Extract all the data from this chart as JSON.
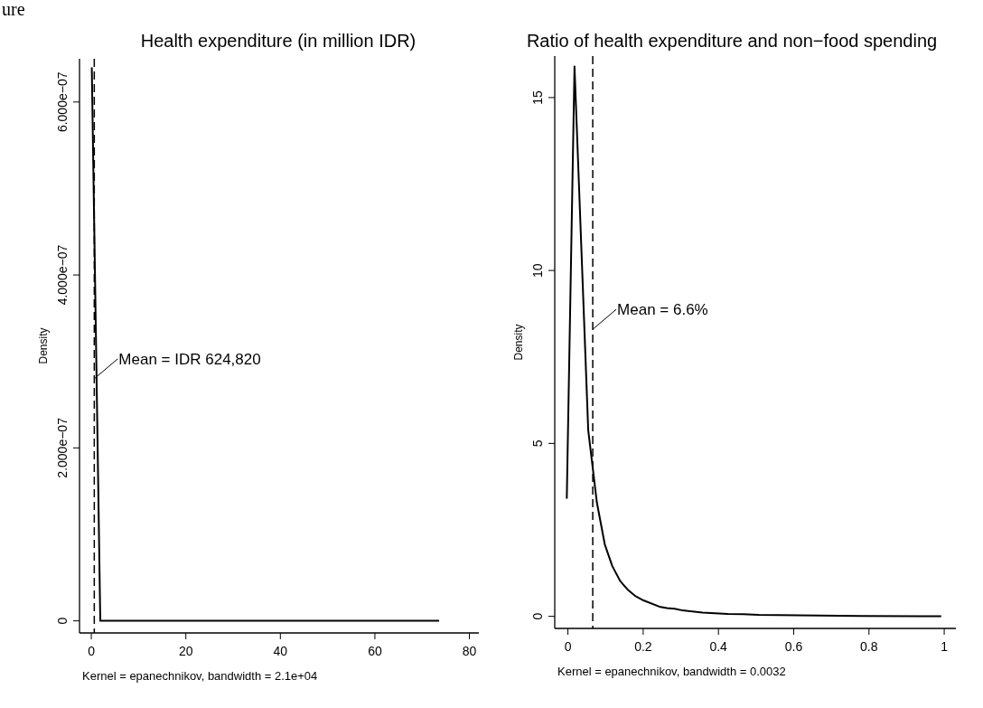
{
  "chart_data": [
    {
      "type": "line",
      "title": "Health expenditure (in million IDR)",
      "xlabel": "Kernel = epanechnikov, bandwidth =  2.1e+04",
      "ylabel": "Density",
      "x": [
        0.1,
        1.9,
        73.6
      ],
      "series": [
        {
          "color": "#000000",
          "values": [
            6.4e-07,
            0,
            0
          ]
        }
      ],
      "xlim": [
        -2.5,
        82
      ],
      "xticks": [
        0,
        20,
        40,
        60,
        80
      ],
      "ylim": [
        -1.4e-08,
        6.5e-07
      ],
      "yticks": [
        0,
        {
          "value": 2e-07,
          "label": "2.000e−07"
        },
        {
          "value": 4e-07,
          "label": "4.000e−07"
        },
        {
          "value": 6e-07,
          "label": "6.000e−07"
        }
      ],
      "ref_lines": [
        {
          "axis": "x",
          "value": 0.62482,
          "line_style": "dashed",
          "color": "#000000"
        }
      ],
      "annotations": [
        {
          "text": "Mean = IDR 624,820",
          "x": 0.62482,
          "y": 2.8e-07
        },
        "ure"
      ],
      "grid": false,
      "line_style": "solid"
    },
    {
      "type": "line",
      "title": "Ratio of health expenditure and non−food spending",
      "xlabel": "Kernel = epanechnikov, bandwidth = 0.0032",
      "ylabel": "Density",
      "x": [
        -0.003,
        0.0175,
        0.054,
        0.077,
        0.098,
        0.118,
        0.139,
        0.16,
        0.18,
        0.201,
        0.243,
        0.263,
        0.284,
        0.305,
        0.358,
        0.425,
        0.466,
        0.507,
        0.615,
        0.78,
        0.992
      ],
      "series": [
        {
          "color": "#000000",
          "values": [
            3.4,
            15.9,
            5.38,
            3.29,
            2.08,
            1.45,
            1.02,
            0.76,
            0.58,
            0.46,
            0.28,
            0.24,
            0.22,
            0.17,
            0.11,
            0.07,
            0.06,
            0.04,
            0.03,
            0.01,
            0.0
          ]
        }
      ],
      "xlim": [
        -0.035,
        1.031
      ],
      "xticks": [
        0,
        0.2,
        0.4,
        0.6,
        0.8,
        1
      ],
      "ylim": [
        -0.35,
        16.2
      ],
      "yticks": [
        0,
        5,
        10,
        15
      ],
      "ref_lines": [
        {
          "axis": "x",
          "value": 0.066,
          "line_style": "dashed",
          "color": "#000000"
        }
      ],
      "annotations": [
        {
          "text": "Mean = 6.6%",
          "x": 0.066,
          "y": 8.3
        }
      ],
      "grid": false,
      "line_style": "solid"
    }
  ]
}
